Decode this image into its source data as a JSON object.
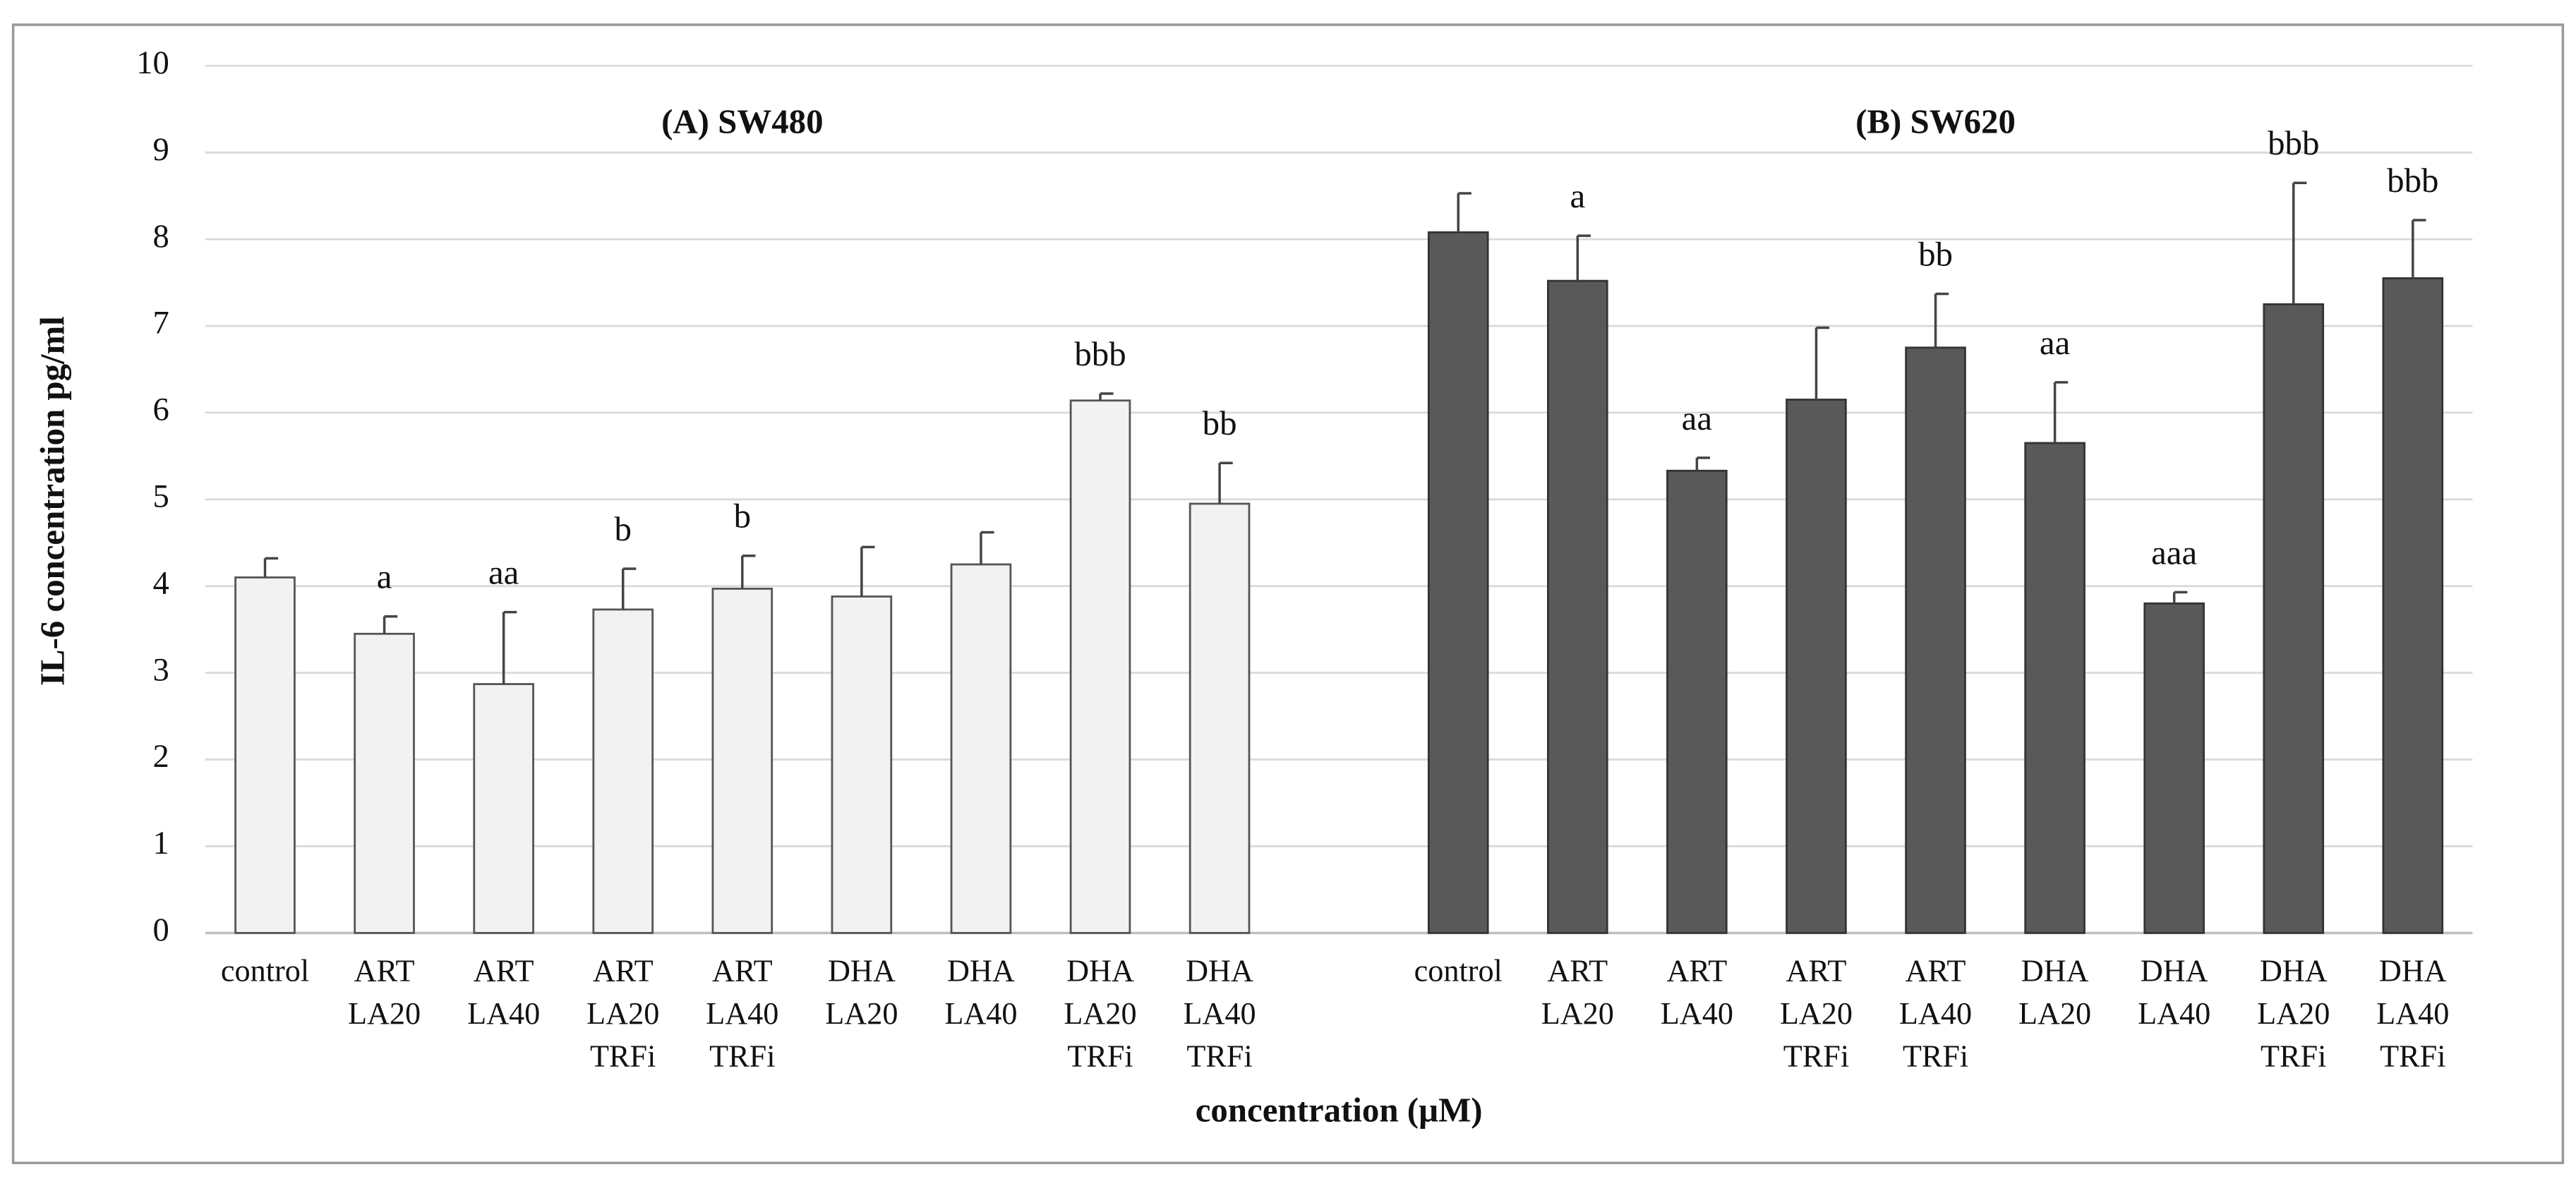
{
  "chart_data": {
    "type": "bar",
    "y_label": "IL-6 concentration pg/ml",
    "x_label": "concentration (µM)",
    "ylim": [
      0,
      10
    ],
    "yticks": [
      0,
      1,
      2,
      3,
      4,
      5,
      6,
      7,
      8,
      9,
      10
    ],
    "grid": true,
    "groups": [
      {
        "title": "(A) SW480",
        "color": "#f2f2f2",
        "categories": [
          [
            "control"
          ],
          [
            "ART",
            "LA20"
          ],
          [
            "ART",
            "LA40"
          ],
          [
            "ART",
            "LA20",
            "TRFi"
          ],
          [
            "ART",
            "LA40",
            "TRFi"
          ],
          [
            "DHA",
            "LA20"
          ],
          [
            "DHA",
            "LA40"
          ],
          [
            "DHA",
            "LA20",
            "TRFi"
          ],
          [
            "DHA",
            "LA40",
            "TRFi"
          ]
        ],
        "values": [
          4.1,
          3.45,
          2.87,
          3.73,
          3.97,
          3.88,
          4.25,
          6.14,
          4.95
        ],
        "errors": [
          0.22,
          0.2,
          0.83,
          0.47,
          0.38,
          0.57,
          0.37,
          0.08,
          0.47
        ],
        "annotations": [
          null,
          "a",
          "aa",
          "b",
          "b",
          null,
          null,
          "bbb",
          "bb"
        ]
      },
      {
        "title": "(B) SW620",
        "color": "#595959",
        "categories": [
          [
            "control"
          ],
          [
            "ART",
            "LA20"
          ],
          [
            "ART",
            "LA40"
          ],
          [
            "ART",
            "LA20",
            "TRFi"
          ],
          [
            "ART",
            "LA40",
            "TRFi"
          ],
          [
            "DHA",
            "LA20"
          ],
          [
            "DHA",
            "LA40"
          ],
          [
            "DHA",
            "LA20",
            "TRFi"
          ],
          [
            "DHA",
            "LA40",
            "TRFi"
          ]
        ],
        "values": [
          8.08,
          7.52,
          5.33,
          6.15,
          6.75,
          5.65,
          3.8,
          7.25,
          7.55
        ],
        "errors": [
          0.45,
          0.52,
          0.15,
          0.83,
          0.62,
          0.7,
          0.13,
          1.4,
          0.67
        ],
        "annotations": [
          null,
          "a",
          "aa",
          null,
          "bb",
          "aa",
          "aaa",
          "bbb",
          "bbb"
        ]
      }
    ]
  }
}
